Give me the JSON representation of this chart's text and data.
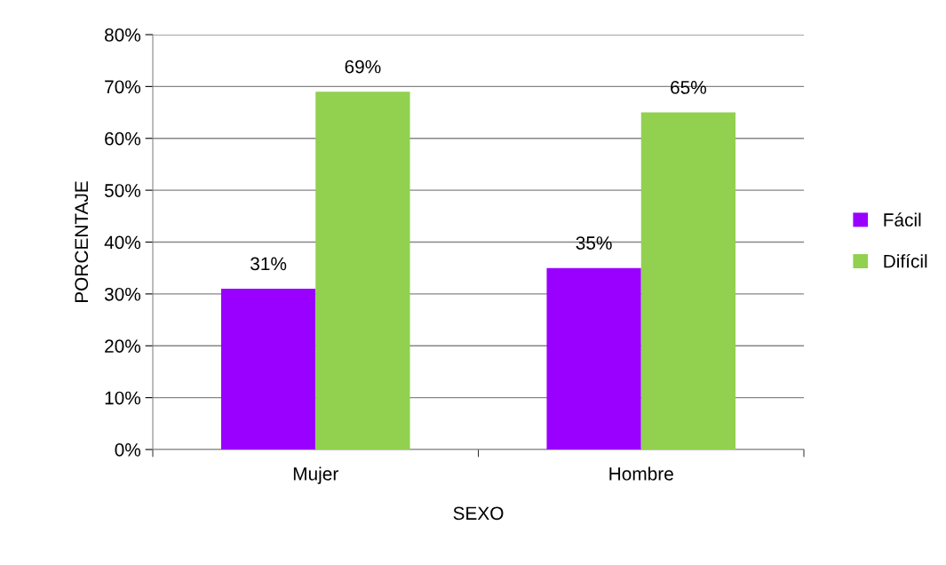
{
  "chart_data": {
    "type": "bar",
    "xlabel": "SEXO",
    "ylabel": "PORCENTAJE",
    "categories": [
      "Mujer",
      "Hombre"
    ],
    "series": [
      {
        "name": "Fácil",
        "color": "#9900ff",
        "values": [
          31,
          35
        ],
        "value_labels": [
          "31%",
          "35%"
        ]
      },
      {
        "name": "Difícil",
        "color": "#92d050",
        "values": [
          69,
          65
        ],
        "value_labels": [
          "69%",
          "65%"
        ]
      }
    ],
    "ylim": [
      0,
      80
    ],
    "yticks": [
      {
        "value": 0,
        "label": "0%"
      },
      {
        "value": 10,
        "label": "10%"
      },
      {
        "value": 20,
        "label": "20%"
      },
      {
        "value": 30,
        "label": "30%"
      },
      {
        "value": 40,
        "label": "40%"
      },
      {
        "value": 50,
        "label": "50%"
      },
      {
        "value": 60,
        "label": "60%"
      },
      {
        "value": 70,
        "label": "70%"
      },
      {
        "value": 80,
        "label": "80%"
      }
    ],
    "grid": "y",
    "legend": "right"
  }
}
